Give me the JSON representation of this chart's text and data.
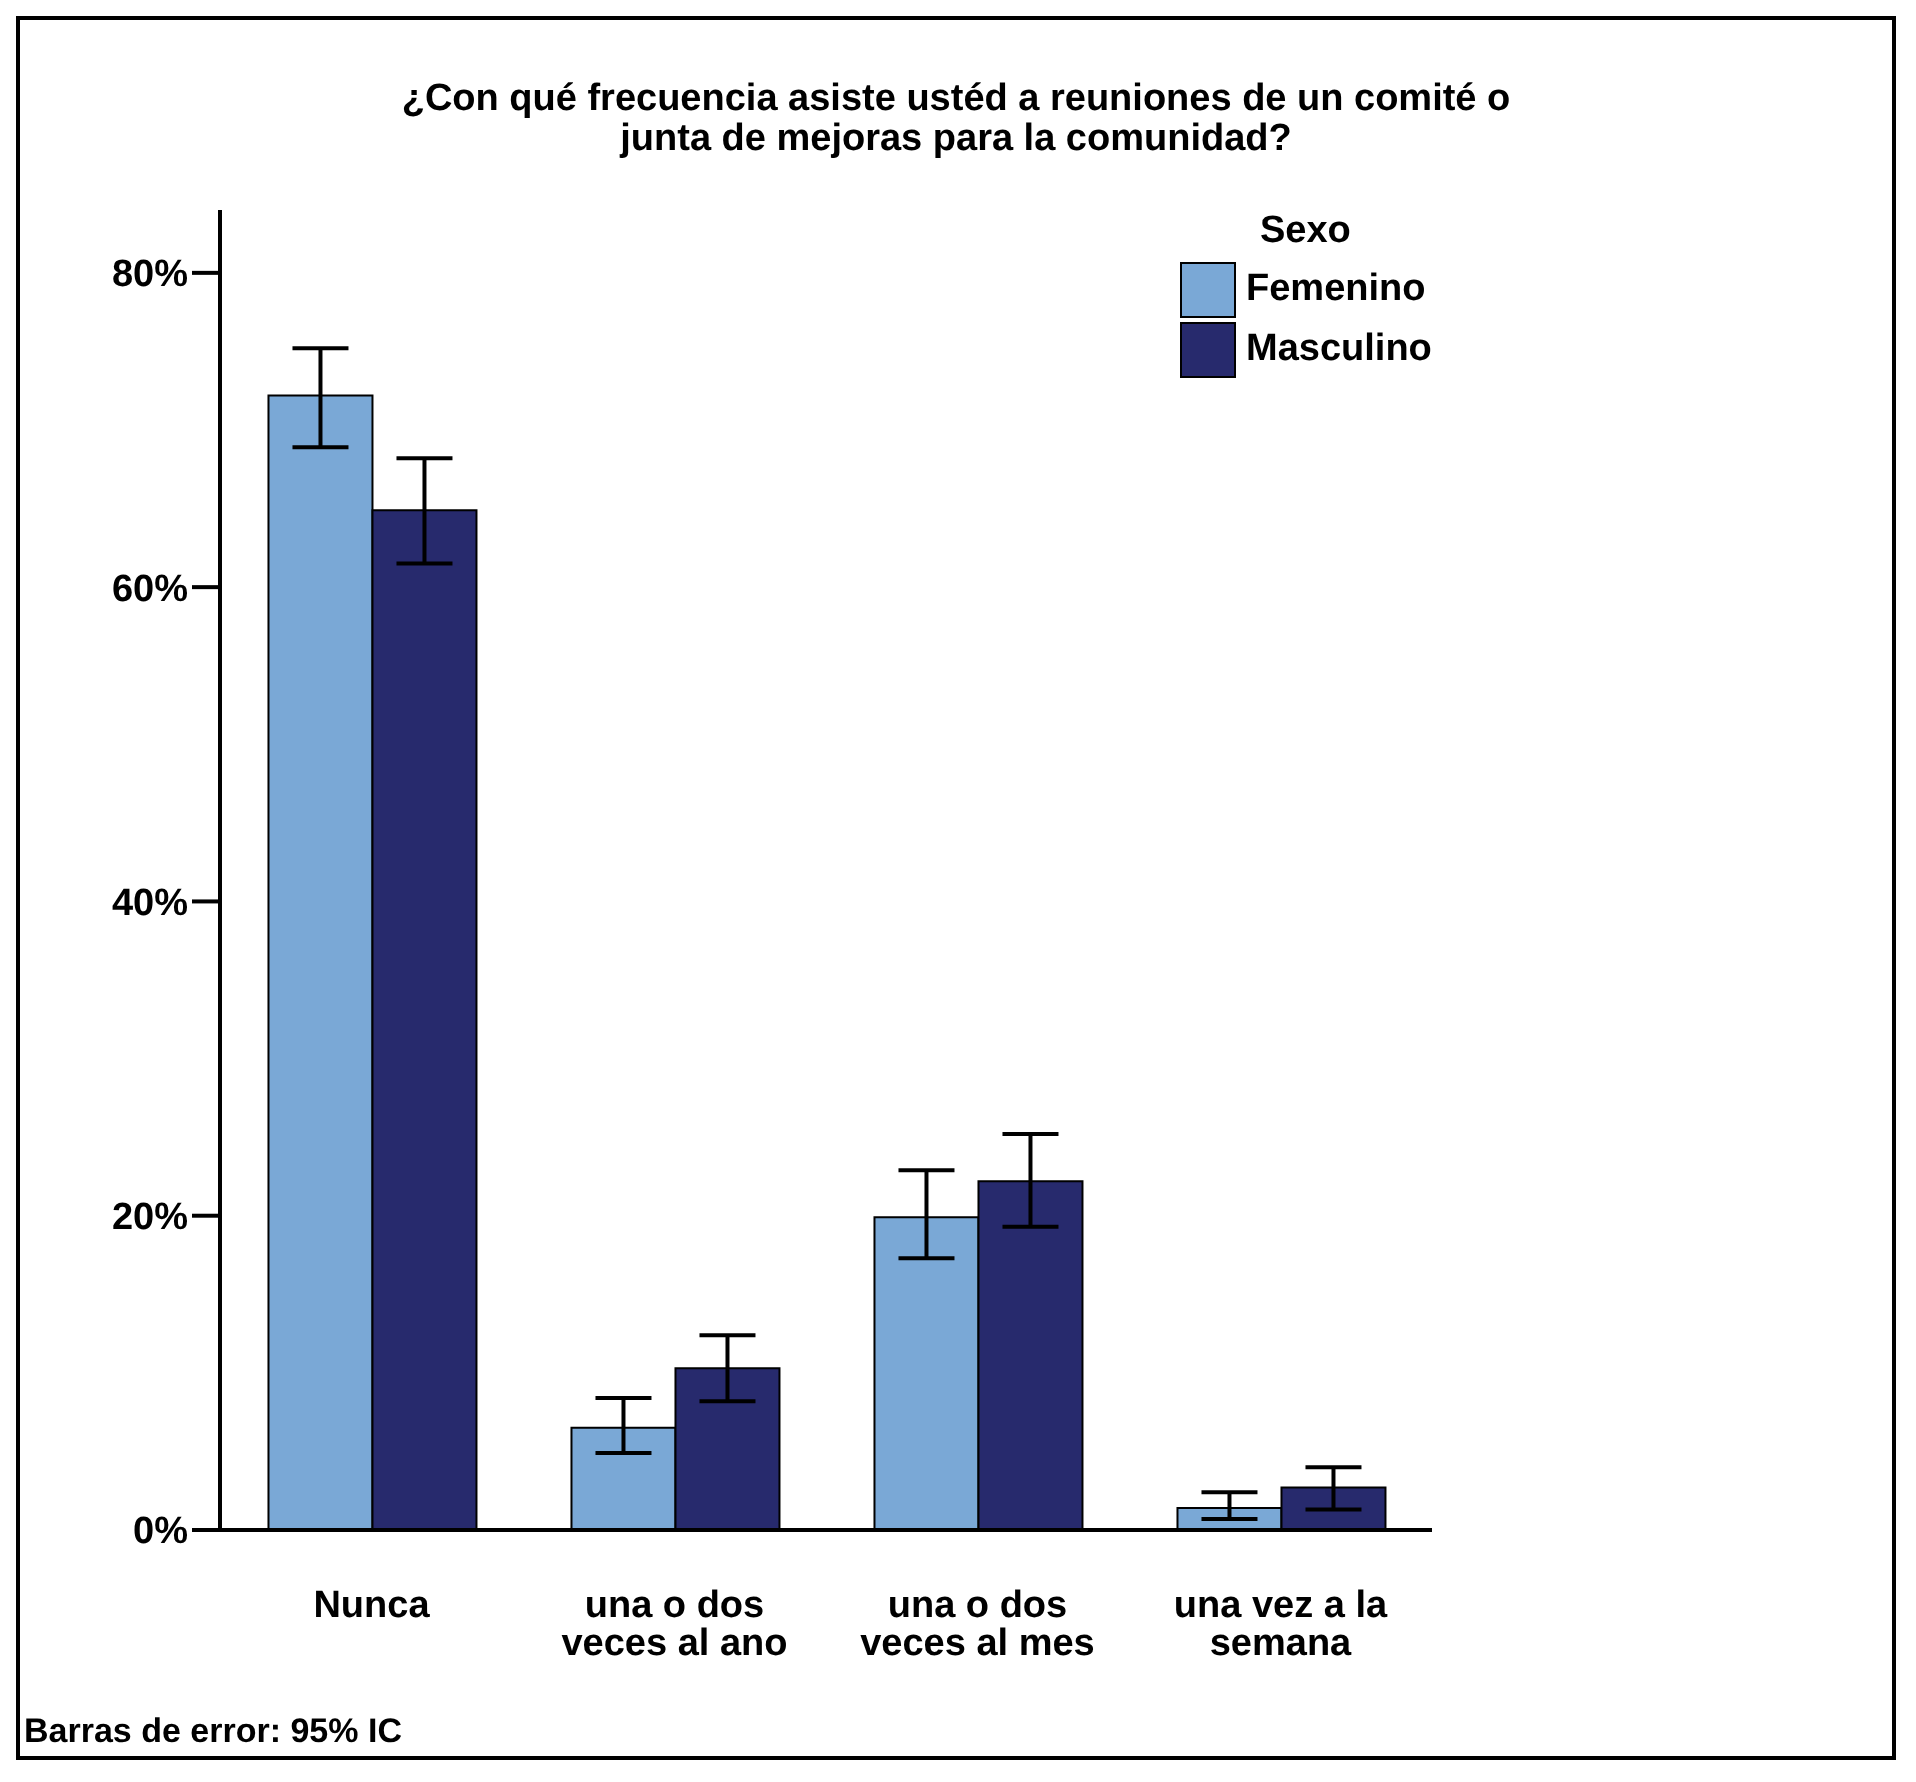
{
  "chart_data": {
    "type": "bar",
    "title": "¿Con qué frecuencia asiste ustéd a reuniones de un comité o junta de mejoras para la comunidad?",
    "categories": [
      "Nunca",
      "una o dos veces al ano",
      "una o dos veces al mes",
      "una vez a la semana"
    ],
    "series": [
      {
        "name": "Femenino",
        "color": "#7aa8d6",
        "values": [
          72.2,
          6.5,
          19.9,
          1.4
        ],
        "errors": [
          [
            68.9,
            75.2
          ],
          [
            4.9,
            8.4
          ],
          [
            17.3,
            22.9
          ],
          [
            0.7,
            2.4
          ]
        ]
      },
      {
        "name": "Masculino",
        "color": "#272a6d",
        "values": [
          64.9,
          10.3,
          22.2,
          2.7
        ],
        "errors": [
          [
            61.5,
            68.2
          ],
          [
            8.2,
            12.4
          ],
          [
            19.3,
            25.2
          ],
          [
            1.3,
            4.0
          ]
        ]
      }
    ],
    "ylim": [
      0,
      84
    ],
    "yticks": [
      {
        "value": 0,
        "label": "0%"
      },
      {
        "value": 20,
        "label": "20%"
      },
      {
        "value": 40,
        "label": "40%"
      },
      {
        "value": 60,
        "label": "60%"
      },
      {
        "value": 80,
        "label": "80%"
      }
    ],
    "legend": "top right",
    "legend_title": "Sexo",
    "grid": false,
    "annotations": [
      "Barras de error: 95% IC"
    ]
  }
}
